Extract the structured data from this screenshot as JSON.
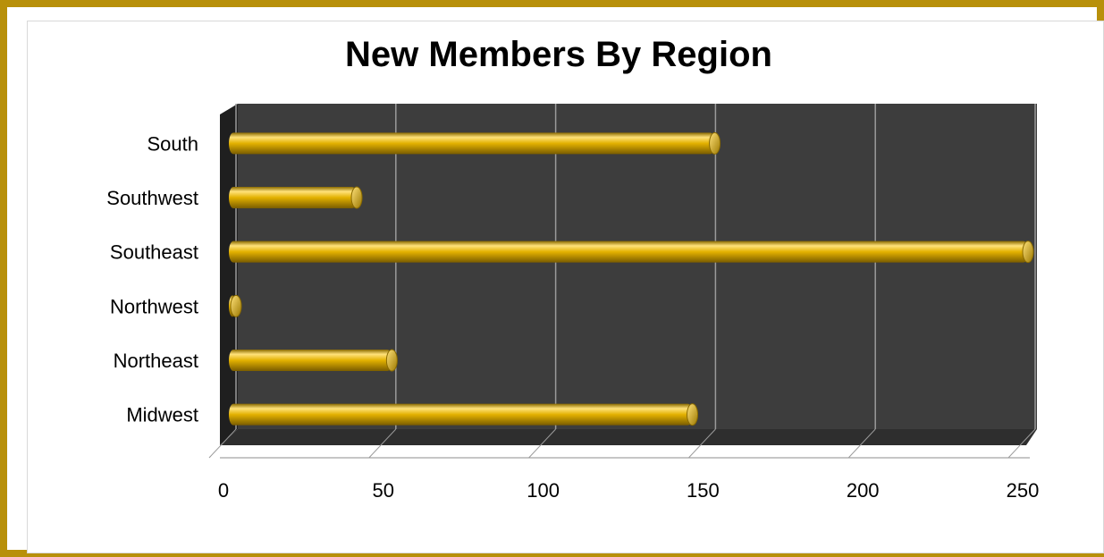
{
  "chart_data": {
    "type": "bar",
    "orientation": "horizontal",
    "style": "3d-cylinder",
    "title": "New Members By Region",
    "xlabel": "",
    "ylabel": "",
    "categories": [
      "Midwest",
      "Northeast",
      "Northwest",
      "Southeast",
      "Southwest",
      "South"
    ],
    "values": [
      145,
      51,
      2,
      250,
      40,
      152
    ],
    "xlim": [
      0,
      250
    ],
    "ticks": [
      "0",
      "50",
      "100",
      "150",
      "200",
      "250"
    ],
    "grid": true,
    "legend": "none",
    "colors": {
      "bar": "#e3b100",
      "bar_dark": "#8a6a00",
      "bar_light": "#ffe27a",
      "plot_background": "#3d3d3d",
      "frame": "#b8900a"
    }
  }
}
